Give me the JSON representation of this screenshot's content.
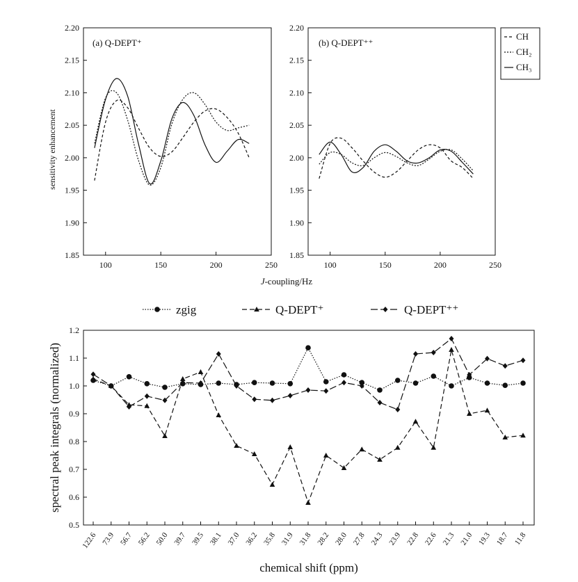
{
  "chart_data": [
    {
      "panel": "a",
      "type": "line",
      "title": "(a) Q-DEPT⁺",
      "ylabel": "sensitivity enhancement",
      "xlabel_italic": "J",
      "xlabel_rest": "-coupling/Hz",
      "xlim": [
        80,
        250
      ],
      "ylim": [
        1.85,
        2.2
      ],
      "xticks": [
        "100",
        "150",
        "200",
        "250"
      ],
      "yticks": [
        "1.85",
        "1.90",
        "1.95",
        "2.00",
        "2.05",
        "2.10",
        "2.15",
        "2.20"
      ],
      "series": [
        {
          "name": "CH",
          "x": [
            90,
            100,
            110,
            120,
            130,
            140,
            150,
            160,
            170,
            180,
            190,
            200,
            210,
            220,
            230
          ],
          "y": [
            1.965,
            2.055,
            2.088,
            2.077,
            2.045,
            2.015,
            2.002,
            2.009,
            2.031,
            2.055,
            2.072,
            2.075,
            2.062,
            2.038,
            2.0
          ]
        },
        {
          "name": "CH₂",
          "x": [
            90,
            100,
            110,
            120,
            130,
            140,
            150,
            160,
            170,
            180,
            190,
            200,
            210,
            220,
            230
          ],
          "y": [
            2.022,
            2.092,
            2.1,
            2.058,
            1.995,
            1.958,
            1.985,
            2.052,
            2.09,
            2.1,
            2.082,
            2.055,
            2.042,
            2.046,
            2.05
          ]
        },
        {
          "name": "CH₃",
          "x": [
            90,
            100,
            110,
            120,
            130,
            140,
            150,
            160,
            170,
            180,
            190,
            200,
            210,
            220,
            230
          ],
          "y": [
            2.015,
            2.09,
            2.122,
            2.095,
            2.02,
            1.96,
            1.995,
            2.06,
            2.085,
            2.065,
            2.02,
            1.993,
            2.01,
            2.028,
            2.022
          ]
        }
      ]
    },
    {
      "panel": "b",
      "type": "line",
      "title": "(b) Q-DEPT⁺⁺",
      "xlim": [
        80,
        250
      ],
      "ylim": [
        1.85,
        2.2
      ],
      "xticks": [
        "100",
        "150",
        "200",
        "250"
      ],
      "yticks": [
        "1.85",
        "1.90",
        "1.95",
        "2.00",
        "2.05",
        "2.10",
        "2.15",
        "2.20"
      ],
      "series": [
        {
          "name": "CH",
          "x": [
            90,
            100,
            110,
            120,
            130,
            140,
            150,
            160,
            170,
            180,
            190,
            200,
            210,
            220,
            230
          ],
          "y": [
            1.968,
            2.022,
            2.03,
            2.015,
            1.995,
            1.978,
            1.97,
            1.978,
            1.995,
            2.012,
            2.02,
            2.015,
            1.995,
            1.985,
            1.968
          ]
        },
        {
          "name": "CH₂",
          "x": [
            90,
            100,
            110,
            120,
            130,
            140,
            150,
            160,
            170,
            180,
            190,
            200,
            210,
            220,
            230
          ],
          "y": [
            1.99,
            2.008,
            2.005,
            1.992,
            1.988,
            2.0,
            2.008,
            2.002,
            1.992,
            1.988,
            1.998,
            2.01,
            2.012,
            1.998,
            1.98
          ]
        },
        {
          "name": "CH₃",
          "x": [
            90,
            100,
            110,
            120,
            130,
            140,
            150,
            160,
            170,
            180,
            190,
            200,
            210,
            220,
            230
          ],
          "y": [
            2.005,
            2.024,
            2.005,
            1.978,
            1.985,
            2.01,
            2.02,
            2.01,
            1.995,
            1.992,
            2.0,
            2.012,
            2.01,
            1.993,
            1.975
          ]
        }
      ]
    },
    {
      "panel": "c",
      "type": "line",
      "xlabel": "chemical shift (ppm)",
      "ylabel": "spectral peak integrals (normalized)",
      "ylim": [
        0.5,
        1.2
      ],
      "yticks": [
        "0.5",
        "0.6",
        "0.7",
        "0.8",
        "0.9",
        "1.0",
        "1.1",
        "1.2"
      ],
      "categories": [
        "122.6",
        "73.9",
        "56.7",
        "56.2",
        "50.0",
        "39.7",
        "39.5",
        "38.1",
        "37.0",
        "36.2",
        "35.8",
        "31.9",
        "31.8",
        "28.2",
        "28.0",
        "27.8",
        "24.3",
        "23.9",
        "22.8",
        "22.6",
        "21.3",
        "21.0",
        "19.3",
        "18.7",
        "11.8"
      ],
      "series": [
        {
          "name": "zgig",
          "values": [
            1.02,
            1.0,
            1.033,
            1.008,
            0.995,
            1.008,
            1.005,
            1.01,
            1.005,
            1.012,
            1.01,
            1.008,
            1.137,
            1.015,
            1.04,
            1.012,
            0.985,
            1.02,
            1.01,
            1.035,
            1.0,
            1.03,
            1.01,
            1.002,
            1.01
          ]
        },
        {
          "name": "Q-DEPT⁺",
          "values": [
            1.025,
            1.0,
            0.932,
            0.928,
            0.82,
            1.025,
            1.05,
            0.895,
            0.785,
            0.755,
            0.645,
            0.78,
            0.58,
            0.75,
            0.705,
            0.772,
            0.735,
            0.778,
            0.872,
            0.778,
            1.13,
            0.9,
            0.912,
            0.815,
            0.822
          ]
        },
        {
          "name": "Q-DEPT⁺⁺",
          "values": [
            1.042,
            1.0,
            0.925,
            0.963,
            0.948,
            1.012,
            1.01,
            1.115,
            1.0,
            0.952,
            0.948,
            0.965,
            0.985,
            0.982,
            1.012,
            1.0,
            0.94,
            0.915,
            1.115,
            1.12,
            1.17,
            1.04,
            1.098,
            1.072,
            1.092
          ]
        }
      ]
    }
  ],
  "legend_top": [
    "CH",
    "CH₂",
    "CH₃"
  ],
  "legend_bottom": [
    "zgig",
    "Q-DEPT⁺",
    "Q-DEPT⁺⁺"
  ]
}
